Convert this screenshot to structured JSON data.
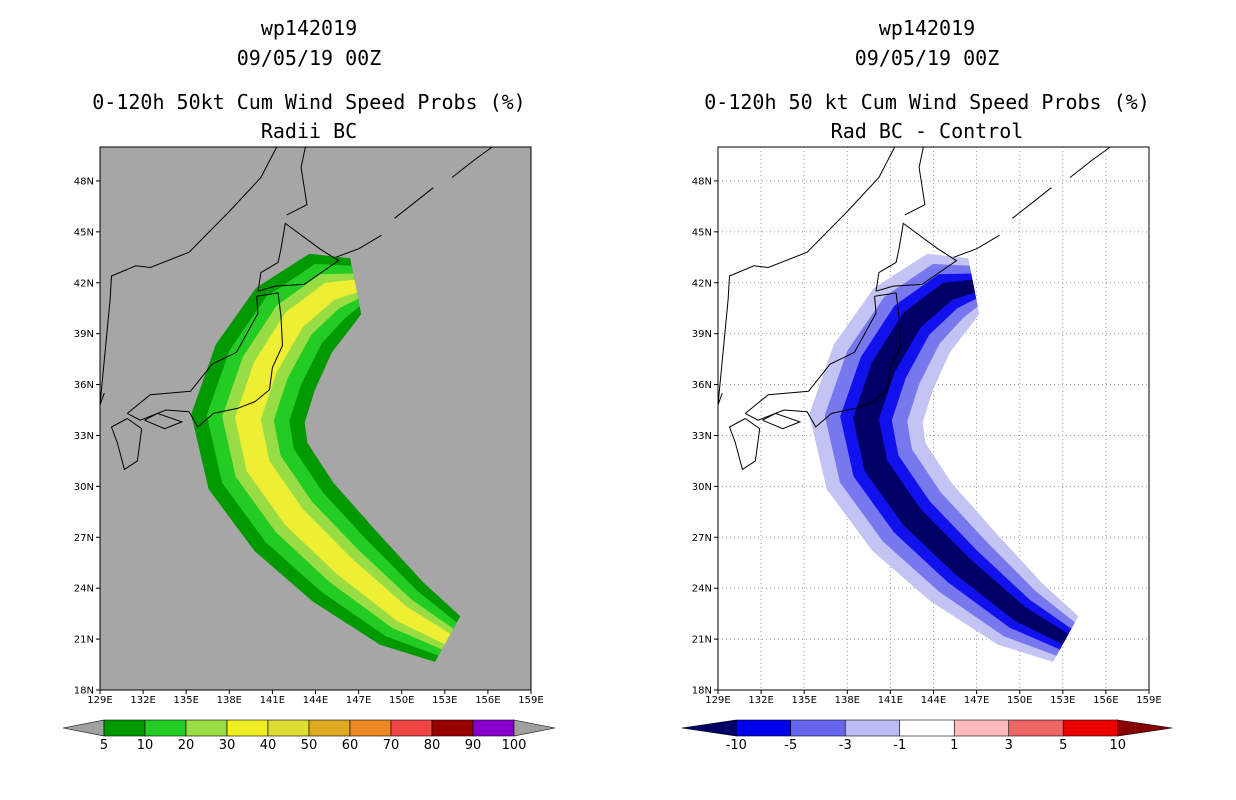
{
  "chart_data": [
    {
      "type": "filled-contour-map",
      "title_lines": [
        "wp142019",
        "09/05/19 00Z",
        "0-120h 50kt Cum Wind Speed Probs (%)",
        "Radii BC"
      ],
      "x_ticks": [
        "129E",
        "132E",
        "135E",
        "138E",
        "141E",
        "144E",
        "147E",
        "150E",
        "153E",
        "156E",
        "159E"
      ],
      "y_ticks": [
        "18N",
        "21N",
        "24N",
        "27N",
        "30N",
        "33N",
        "36N",
        "39N",
        "42N",
        "45N",
        "48N"
      ],
      "xlim": [
        129,
        159
      ],
      "ylim": [
        18,
        50
      ],
      "grid": false,
      "background_color": "#a6a6a6",
      "colorbar_levels": [
        "5",
        "10",
        "20",
        "30",
        "40",
        "50",
        "60",
        "70",
        "80",
        "90",
        "100"
      ],
      "colorbar_colors": [
        "#a0a0a0",
        "#009900",
        "#22cc22",
        "#99dd44",
        "#eeee22",
        "#dddd33",
        "#ddaa22",
        "#ee8822",
        "#ee4444",
        "#990000",
        "#8800cc",
        "#a0a0a0"
      ],
      "band_colors": [
        "#009900",
        "#22cc22",
        "#99dd44",
        "#eeee33"
      ]
    },
    {
      "type": "filled-contour-map",
      "title_lines": [
        "wp142019",
        "09/05/19 00Z",
        "0-120h 50 kt Cum Wind Speed Probs (%)",
        "Rad BC - Control"
      ],
      "x_ticks": [
        "129E",
        "132E",
        "135E",
        "138E",
        "141E",
        "144E",
        "147E",
        "150E",
        "153E",
        "156E",
        "159E"
      ],
      "y_ticks": [
        "18N",
        "21N",
        "24N",
        "27N",
        "30N",
        "33N",
        "36N",
        "39N",
        "42N",
        "45N",
        "48N"
      ],
      "xlim": [
        129,
        159
      ],
      "ylim": [
        18,
        50
      ],
      "grid": true,
      "background_color": "#ffffff",
      "colorbar_levels": [
        "-10",
        "-5",
        "-3",
        "-1",
        "1",
        "3",
        "5",
        "10"
      ],
      "colorbar_colors": [
        "#000066",
        "#0000ee",
        "#6666ee",
        "#bbbbf4",
        "#ffffff",
        "#ffbbbb",
        "#ee6666",
        "#ee0000",
        "#880000"
      ],
      "band_colors": [
        "#c4c4f4",
        "#7777ee",
        "#1111ee",
        "#000066"
      ]
    }
  ]
}
